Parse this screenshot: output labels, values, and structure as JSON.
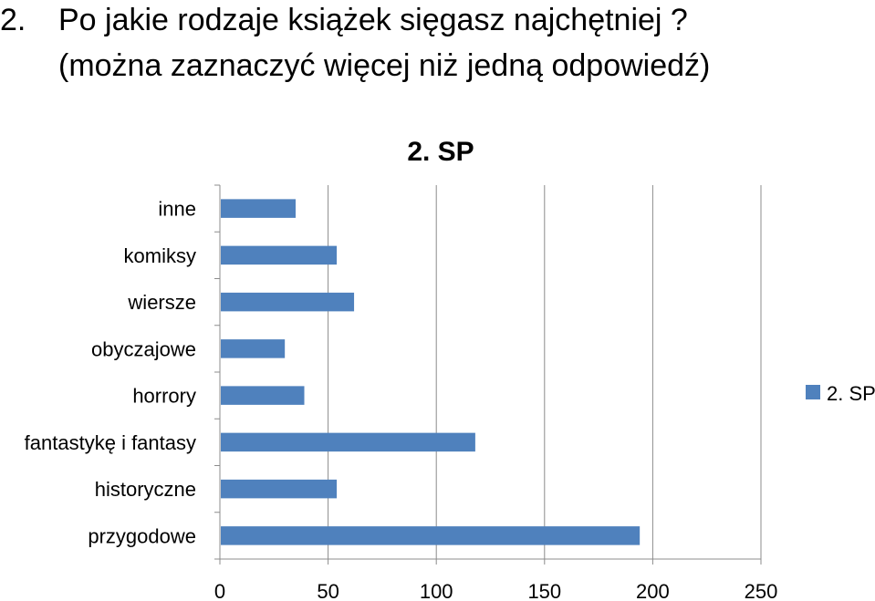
{
  "heading": {
    "number": "2.",
    "line1": "Po jakie rodzaje książek sięgasz najchętniej ?",
    "line2": "(można zaznaczyć więcej niż jedną odpowiedź)"
  },
  "chart_data": {
    "type": "bar",
    "orientation": "horizontal",
    "title": "2. SP",
    "categories": [
      "inne",
      "komiksy",
      "wiersze",
      "obyczajowe",
      "horrory",
      "fantastykę i fantasy",
      "historyczne",
      "przygodowe"
    ],
    "series": [
      {
        "name": "2. SP",
        "color": "#4F81BD",
        "values": [
          35,
          54,
          62,
          30,
          39,
          118,
          54,
          194
        ]
      }
    ],
    "xlim": [
      0,
      250
    ],
    "xticks": [
      0,
      50,
      100,
      150,
      200,
      250
    ],
    "grid": "vertical",
    "legend": "right"
  }
}
